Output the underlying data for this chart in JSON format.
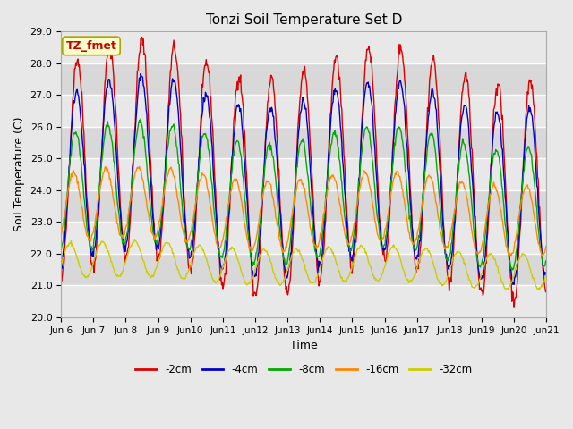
{
  "title": "Tonzi Soil Temperature Set D",
  "xlabel": "Time",
  "ylabel": "Soil Temperature (C)",
  "annotation": "TZ_fmet",
  "annotation_color": "#cc0000",
  "annotation_bg": "#ffffcc",
  "annotation_border": "#aaa800",
  "ylim": [
    20.0,
    29.0
  ],
  "yticks": [
    20.0,
    21.0,
    22.0,
    23.0,
    24.0,
    25.0,
    26.0,
    27.0,
    28.0,
    29.0
  ],
  "xtick_labels": [
    "Jun 6",
    "Jun 7",
    "Jun 8",
    "Jun 9",
    "Jun 10",
    "Jun 11",
    "Jun 12",
    "Jun 13",
    "Jun 14",
    "Jun 15",
    "Jun 16",
    "Jun 17",
    "Jun 18",
    "Jun 19",
    "Jun 20",
    "Jun 21"
  ],
  "n_days": 15,
  "points_per_day": 48,
  "fig_bg": "#e8e8e8",
  "plot_bg": "#d8d8d8",
  "band_color_light": "#e8e8e8",
  "grid_color": "#ffffff",
  "lines": [
    {
      "label": "-2cm",
      "color": "#dd0000",
      "amplitude": 3.4,
      "mean_base": 24.8,
      "phase": 0.0,
      "depth_lag": 0.0,
      "noise": 0.12
    },
    {
      "label": "-4cm",
      "color": "#0000cc",
      "amplitude": 2.7,
      "mean_base": 24.5,
      "phase": 0.0,
      "depth_lag": 0.12,
      "noise": 0.08
    },
    {
      "label": "-8cm",
      "color": "#00aa00",
      "amplitude": 1.9,
      "mean_base": 24.0,
      "phase": 0.0,
      "depth_lag": 0.35,
      "noise": 0.06
    },
    {
      "label": "-16cm",
      "color": "#ff8800",
      "amplitude": 1.1,
      "mean_base": 23.5,
      "phase": 0.0,
      "depth_lag": 0.7,
      "noise": 0.04
    },
    {
      "label": "-32cm",
      "color": "#cccc00",
      "amplitude": 0.55,
      "mean_base": 21.8,
      "phase": 0.0,
      "depth_lag": 1.4,
      "noise": 0.025
    }
  ]
}
